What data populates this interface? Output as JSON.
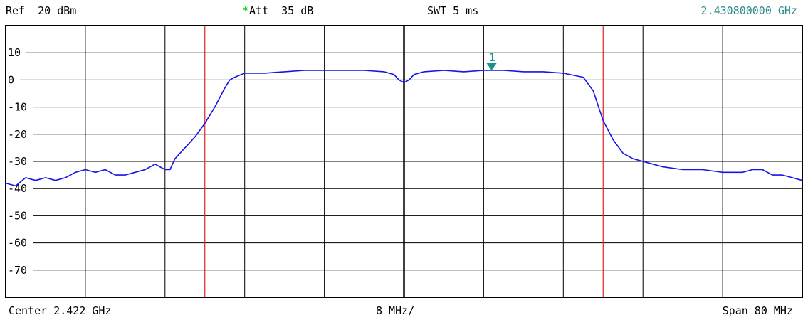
{
  "header": {
    "ref_level": "Ref  20 dBm",
    "att_star": "*",
    "attenuation": "Att  35 dB",
    "sweep_time": "SWT 5 ms",
    "marker_frequency": "2.430800000 GHz"
  },
  "footer": {
    "center": "Center 2.422 GHz",
    "per_division": "8 MHz/",
    "span": "Span 80 MHz"
  },
  "colors": {
    "trace": "#1515e6",
    "grid": "#000000",
    "limit_line": "#dd2222",
    "marker": "#1a9090",
    "att_star": "#00cc00"
  },
  "chart_data": {
    "type": "line",
    "title": "",
    "xlabel": "",
    "ylabel": "",
    "x_unit": "MHz",
    "y_unit": "dBm",
    "xlim": [
      2382,
      2462
    ],
    "ylim": [
      -80,
      20
    ],
    "grid": true,
    "y_tick_labels": [
      "10",
      "0",
      "-10",
      "-20",
      "-30",
      "-40",
      "-50",
      "-60",
      "-70"
    ],
    "y_tick_values": [
      10,
      0,
      -10,
      -20,
      -30,
      -40,
      -50,
      -60,
      -70
    ],
    "vertical_lines": [
      {
        "x": 2402,
        "color": "red"
      },
      {
        "x": 2442,
        "color": "red"
      }
    ],
    "markers": [
      {
        "label": "1",
        "x": 2430.8,
        "y": 3.5
      }
    ],
    "series": [
      {
        "x": [
          2382,
          2383,
          2384,
          2385,
          2386,
          2387,
          2388,
          2389,
          2390,
          2391,
          2392,
          2393,
          2394,
          2395,
          2396,
          2397,
          2398,
          2398.5,
          2399,
          2400,
          2401,
          2402,
          2403,
          2404,
          2404.5,
          2405,
          2406,
          2408,
          2410,
          2412,
          2414,
          2416,
          2418,
          2420,
          2421,
          2421.5,
          2422,
          2422.5,
          2423,
          2424,
          2426,
          2428,
          2430,
          2430.8,
          2432,
          2434,
          2436,
          2438,
          2440,
          2441,
          2442,
          2443,
          2444,
          2445,
          2446,
          2447,
          2448,
          2450,
          2452,
          2454,
          2456,
          2457,
          2458,
          2459,
          2460,
          2461,
          2462
        ],
        "y": [
          -38,
          -39,
          -36,
          -37,
          -36,
          -37,
          -36,
          -34,
          -33,
          -34,
          -33,
          -35,
          -35,
          -34,
          -33,
          -31,
          -33,
          -33,
          -29,
          -25,
          -21,
          -16,
          -10,
          -3,
          0,
          1,
          2.5,
          2.5,
          3,
          3.5,
          3.5,
          3.5,
          3.5,
          3,
          2,
          0,
          -1,
          0,
          2,
          3,
          3.5,
          3,
          3.5,
          3.5,
          3.5,
          3,
          3,
          2.5,
          1,
          -4,
          -15,
          -22,
          -27,
          -29,
          -30,
          -31,
          -32,
          -33,
          -33,
          -34,
          -34,
          -33,
          -33,
          -35,
          -35,
          -36,
          -37
        ]
      }
    ]
  }
}
